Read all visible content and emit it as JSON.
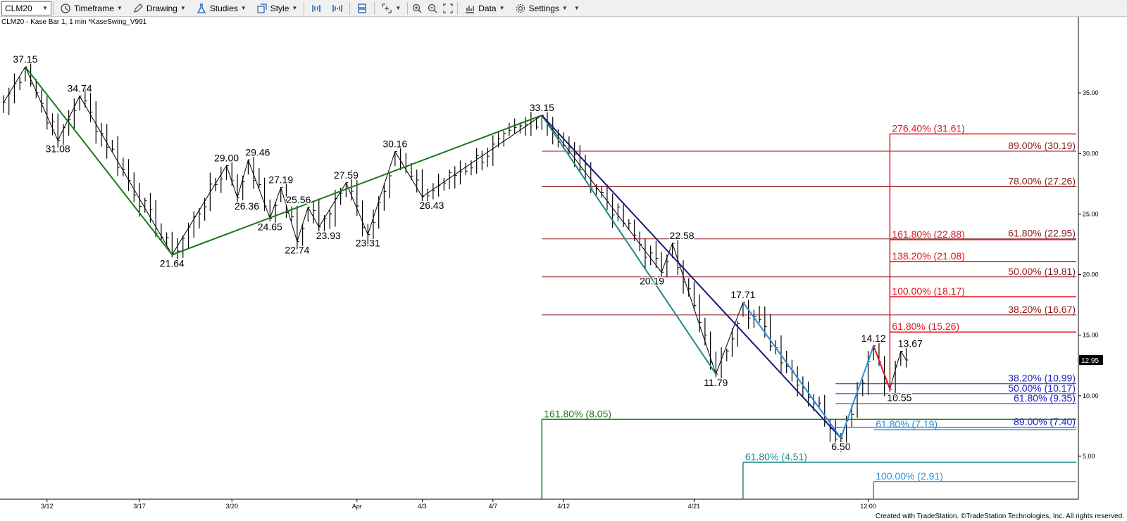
{
  "toolbar": {
    "symbol": "CLM20",
    "timeframe": "Timeframe",
    "drawing": "Drawing",
    "studies": "Studies",
    "style": "Style",
    "data": "Data",
    "settings": "Settings"
  },
  "chart_title": "CLM20 - Kase Bar 1, 1 min  *KaseSwing_V991",
  "copyright": "Created with TradeStation. ©TradeStation Technologies, Inc. All rights reserved.",
  "colors": {
    "green": "#1a7a1a",
    "teal": "#1f8a8a",
    "navy": "#1a1a7a",
    "lightblue": "#2a8fe0",
    "red": "#e0141e",
    "darkred": "#8b1a1a",
    "blue": "#2020c0",
    "price_box": "#000000"
  },
  "chart_data": {
    "type": "line",
    "ylim": [
      2.5,
      40
    ],
    "y_ticks": [
      "5.00",
      "10.00",
      "15.00",
      "20.00",
      "25.00",
      "30.00",
      "35.00"
    ],
    "y_tick_values": [
      5,
      10,
      15,
      20,
      25,
      30,
      35
    ],
    "x_ticks": [
      "3/12",
      "3/17",
      "3/20",
      "Apr",
      "4/3",
      "4/7",
      "4/12",
      "4/21",
      "12:00"
    ],
    "x_tick_index": [
      8,
      25,
      42,
      65,
      77,
      90,
      103,
      127,
      159
    ],
    "last_price": "12.95",
    "bar_count": 166,
    "swings": [
      {
        "i": 0,
        "price": 34.2
      },
      {
        "i": 4,
        "price": 37.15,
        "label": "37.15",
        "pos": "above"
      },
      {
        "i": 10,
        "price": 31.08,
        "label": "31.08",
        "pos": "below"
      },
      {
        "i": 14,
        "price": 34.74,
        "label": "34.74",
        "pos": "above"
      },
      {
        "i": 31,
        "price": 21.64,
        "label": "21.64",
        "pos": "below"
      },
      {
        "i": 41,
        "price": 29.0,
        "label": "29.00",
        "pos": "above"
      },
      {
        "i": 43,
        "price": 26.36,
        "label": "26.36",
        "pos": "belowright"
      },
      {
        "i": 45,
        "price": 29.46,
        "label": "29.46",
        "pos": "aboveright"
      },
      {
        "i": 49,
        "price": 24.65,
        "label": "24.65",
        "pos": "below"
      },
      {
        "i": 51,
        "price": 27.19,
        "label": "27.19",
        "pos": "above"
      },
      {
        "i": 54,
        "price": 22.74,
        "label": "22.74",
        "pos": "below"
      },
      {
        "i": 56,
        "price": 25.56,
        "label": "25.56",
        "pos": "aboveleft"
      },
      {
        "i": 58,
        "price": 23.93,
        "label": "23.93",
        "pos": "belowright"
      },
      {
        "i": 63,
        "price": 27.59,
        "label": "27.59",
        "pos": "above"
      },
      {
        "i": 67,
        "price": 23.31,
        "label": "23.31",
        "pos": "below"
      },
      {
        "i": 72,
        "price": 30.16,
        "label": "30.16",
        "pos": "above"
      },
      {
        "i": 77,
        "price": 26.43,
        "label": "26.43",
        "pos": "belowright"
      },
      {
        "i": 99,
        "price": 33.15,
        "label": "33.15",
        "pos": "above"
      },
      {
        "i": 121,
        "price": 20.19,
        "label": "20.19",
        "pos": "belowleft"
      },
      {
        "i": 123,
        "price": 22.58,
        "label": "22.58",
        "pos": "aboveright"
      },
      {
        "i": 131,
        "price": 11.79,
        "label": "11.79",
        "pos": "below"
      },
      {
        "i": 136,
        "price": 17.71,
        "label": "17.71",
        "pos": "above"
      },
      {
        "i": 154,
        "price": 6.5,
        "label": "6.50",
        "pos": "below"
      },
      {
        "i": 160,
        "price": 14.12,
        "label": "14.12",
        "pos": "above"
      },
      {
        "i": 163,
        "price": 10.55,
        "label": "10.55",
        "pos": "belowright"
      },
      {
        "i": 165,
        "price": 13.67,
        "label": "13.67",
        "pos": "aboveright"
      },
      {
        "i": 166,
        "price": 12.95
      }
    ],
    "trend_lines": [
      {
        "from_i": 4,
        "from_p": 37.15,
        "to_i": 31,
        "to_p": 21.64,
        "color": "green",
        "width": 2
      },
      {
        "from_i": 31,
        "from_p": 21.64,
        "to_i": 99,
        "to_p": 33.15,
        "color": "green",
        "width": 2
      },
      {
        "from_i": 99,
        "from_p": 33.15,
        "to_i": 131,
        "to_p": 11.79,
        "color": "teal",
        "width": 2
      },
      {
        "from_i": 99,
        "from_p": 33.15,
        "to_i": 154,
        "to_p": 6.5,
        "color": "navy",
        "width": 2
      },
      {
        "from_i": 136,
        "from_p": 17.71,
        "to_i": 154,
        "to_p": 6.5,
        "color": "lightblue",
        "width": 2
      },
      {
        "from_i": 154,
        "from_p": 6.5,
        "to_i": 160,
        "to_p": 14.12,
        "color": "lightblue",
        "width": 2
      },
      {
        "from_i": 160,
        "from_p": 14.12,
        "to_i": 163,
        "to_p": 10.55,
        "color": "red",
        "width": 2
      }
    ],
    "vertical_lines": [
      {
        "i": 99,
        "from_p": 8.05,
        "color": "green"
      },
      {
        "i": 136,
        "from_p": 4.51,
        "color": "teal"
      },
      {
        "i": 160,
        "from_p": 2.91,
        "color": "lightblue"
      },
      {
        "i": 163,
        "from_p": 10.55,
        "to_p": 31.61,
        "color": "red"
      }
    ],
    "fib_levels": [
      {
        "label": "89.00% (30.19)",
        "value": 30.19,
        "from_i": 99,
        "color": "darkred",
        "align": "right"
      },
      {
        "label": "78.00% (27.26)",
        "value": 27.26,
        "from_i": 99,
        "color": "darkred",
        "align": "right"
      },
      {
        "label": "61.80% (22.95)",
        "value": 22.95,
        "from_i": 99,
        "color": "darkred",
        "align": "right"
      },
      {
        "label": "50.00% (19.81)",
        "value": 19.81,
        "from_i": 99,
        "color": "darkred",
        "align": "right"
      },
      {
        "label": "38.20% (16.67)",
        "value": 16.67,
        "from_i": 99,
        "color": "darkred",
        "align": "right"
      },
      {
        "label": "276.40% (31.61)",
        "value": 31.61,
        "from_i": 163,
        "color": "red",
        "align": "left"
      },
      {
        "label": "161.80% (22.88)",
        "value": 22.88,
        "from_i": 163,
        "color": "red",
        "align": "left"
      },
      {
        "label": "138.20% (21.08)",
        "value": 21.08,
        "from_i": 163,
        "color": "red",
        "align": "left"
      },
      {
        "label": "100.00% (18.17)",
        "value": 18.17,
        "from_i": 163,
        "color": "red",
        "align": "left"
      },
      {
        "label": "61.80% (15.26)",
        "value": 15.26,
        "from_i": 163,
        "color": "red",
        "align": "left"
      },
      {
        "label": "38.20% (10.99)",
        "value": 10.99,
        "from_i": 153,
        "color": "blue",
        "align": "right"
      },
      {
        "label": "50.00% (10.17)",
        "value": 10.17,
        "from_i": 153,
        "color": "blue",
        "align": "right"
      },
      {
        "label": "61.80% (9.35)",
        "value": 9.35,
        "from_i": 153,
        "color": "blue",
        "align": "right"
      },
      {
        "label": "89.00% (7.40)",
        "value": 7.4,
        "from_i": 153,
        "color": "blue",
        "align": "right"
      },
      {
        "label": "161.80% (8.05)",
        "value": 8.05,
        "from_i": 99,
        "color": "green",
        "align": "left"
      },
      {
        "label": "61.80% (7.19)",
        "value": 7.19,
        "from_i": 160,
        "color": "lightblue",
        "align": "left"
      },
      {
        "label": "61.80% (4.51)",
        "value": 4.51,
        "from_i": 136,
        "color": "teal",
        "align": "left"
      },
      {
        "label": "100.00% (2.91)",
        "value": 2.91,
        "from_i": 160,
        "color": "lightblue",
        "align": "left"
      }
    ]
  }
}
